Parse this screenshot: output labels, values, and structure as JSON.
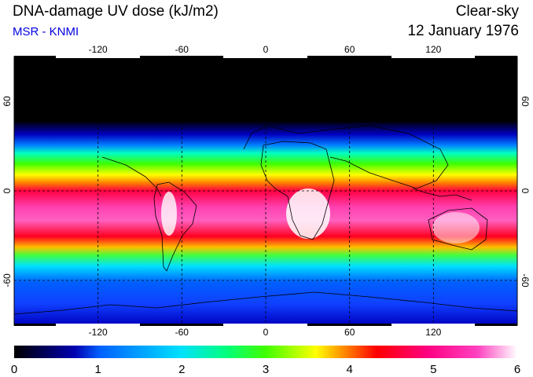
{
  "title": "DNA-damage UV dose (kJ/m2)",
  "subtitle": "MSR - KNMI",
  "condition": "Clear-sky",
  "date": "12 January 1976",
  "colors": {
    "subtitle": "#0000e0",
    "scale": [
      "#000000",
      "#0000b0",
      "#0060ff",
      "#00e0ff",
      "#00ff80",
      "#40ff00",
      "#ffff00",
      "#ff8000",
      "#ff0000",
      "#ff0080",
      "#ff40c0",
      "#ffffff"
    ]
  },
  "map": {
    "lon_ticks": [
      "-120",
      "-60",
      "0",
      "60",
      "120"
    ],
    "lat_ticks": [
      "60",
      "0",
      "-60"
    ],
    "lon_range": [
      -180,
      180
    ],
    "lat_range": [
      -90,
      90
    ],
    "coastlines": true,
    "grid": "dashed"
  },
  "colorbar": {
    "ticks": [
      "0",
      "1",
      "2",
      "3",
      "4",
      "5",
      "6"
    ],
    "range": [
      0,
      6
    ]
  }
}
